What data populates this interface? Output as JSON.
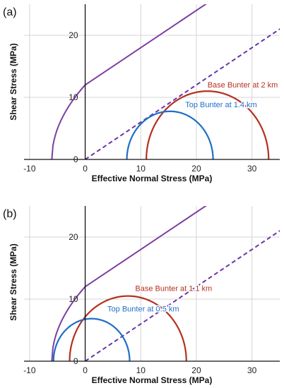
{
  "chart_data": [
    {
      "type": "line",
      "panel_label": "(a)",
      "xlabel": "Effective Normal Stress (MPa)",
      "ylabel": "Shear Stress (MPa)",
      "xlim": [
        -11,
        35
      ],
      "ylim": [
        0,
        25
      ],
      "x_ticks": [
        -10,
        0,
        10,
        20,
        30
      ],
      "x_tick_labels": [
        "-10",
        "0",
        "10",
        "20",
        "30"
      ],
      "y_ticks": [
        0,
        10,
        20
      ],
      "y_tick_labels": [
        "0",
        "10",
        "20"
      ],
      "grid": true,
      "axis_color": "#111111",
      "grid_color": "#d4d4d4",
      "failure_envelopes": [
        {
          "style": "solid",
          "color": "#7b3fa0",
          "cohesion": 12,
          "slope": 0.6,
          "tension_cutoff": -6
        },
        {
          "style": "dashed",
          "color": "#6a35a6",
          "cohesion": 0,
          "slope": 0.6
        }
      ],
      "mohr_circles": [
        {
          "sigma3": 11,
          "sigma1": 33,
          "color": "#b5301e"
        },
        {
          "sigma3": 7.5,
          "sigma1": 23,
          "color": "#1e6fc8"
        }
      ],
      "annotations": [
        {
          "text": "Base Bunter at 2 km",
          "x": 22,
          "y": 11.6,
          "color": "#b5301e"
        },
        {
          "text": "Top Bunter at 1.4 km",
          "x": 18,
          "y": 8.4,
          "color": "#1e6fc8"
        }
      ]
    },
    {
      "type": "line",
      "panel_label": "(b)",
      "xlabel": "Effective Normal Stress (MPa)",
      "ylabel": "Shear Stress (MPa)",
      "xlim": [
        -11,
        35
      ],
      "ylim": [
        0,
        25
      ],
      "x_ticks": [
        -10,
        0,
        10,
        20,
        30
      ],
      "x_tick_labels": [
        "-10",
        "0",
        "10",
        "20",
        "30"
      ],
      "y_ticks": [
        0,
        10,
        20
      ],
      "y_tick_labels": [
        "0",
        "10",
        "20"
      ],
      "grid": true,
      "axis_color": "#111111",
      "grid_color": "#d4d4d4",
      "failure_envelopes": [
        {
          "style": "solid",
          "color": "#7b3fa0",
          "cohesion": 12,
          "slope": 0.6,
          "tension_cutoff": -6
        },
        {
          "style": "dashed",
          "color": "#6a35a6",
          "cohesion": 0,
          "slope": 0.6
        }
      ],
      "mohr_circles": [
        {
          "sigma3": -2.8,
          "sigma1": 18.2,
          "color": "#b5301e"
        },
        {
          "sigma3": -5.7,
          "sigma1": 8,
          "color": "#1e6fc8"
        }
      ],
      "annotations": [
        {
          "text": "Base Bunter at 1.1 km",
          "x": 9,
          "y": 11.3,
          "color": "#b5301e"
        },
        {
          "text": "Top Bunter at 0.5 km",
          "x": 4,
          "y": 8,
          "color": "#1e6fc8"
        }
      ]
    }
  ]
}
